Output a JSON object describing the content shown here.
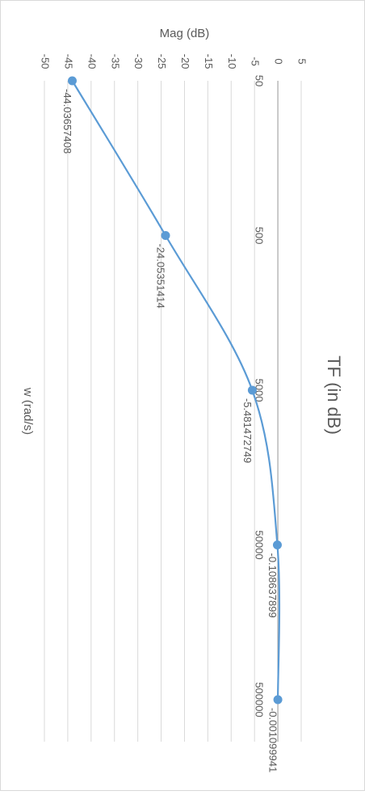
{
  "chart_data": {
    "type": "line",
    "title": "TF (in dB)",
    "xlabel": "w (rad/s)",
    "ylabel": "Mag (dB)",
    "x_scale": "log",
    "x_tick_labels": [
      "50",
      "500",
      "5000",
      "50000",
      "500000"
    ],
    "y_ticks": [
      5,
      0,
      -5,
      -10,
      -15,
      -20,
      -25,
      -30,
      -35,
      -40,
      -45,
      -50
    ],
    "ylim": [
      -50,
      5
    ],
    "grid": true,
    "series": [
      {
        "x": [
          50,
          500,
          5000,
          50000,
          500000
        ],
        "y": [
          -44.03657408,
          -24.05351414,
          -5.481472749,
          -0.108637899,
          -0.001099941
        ],
        "data_labels": [
          "-44.03657408",
          "-24.05351414",
          "-5.481472749",
          "-0.108637899",
          "-0.001099941"
        ],
        "color": "#5b9bd5"
      }
    ],
    "colors": {
      "series": "#5b9bd5",
      "gridline": "#d9d9d9",
      "zero_axis": "#a6a6a6",
      "text": "#595959",
      "border": "#d9d9d9"
    }
  }
}
